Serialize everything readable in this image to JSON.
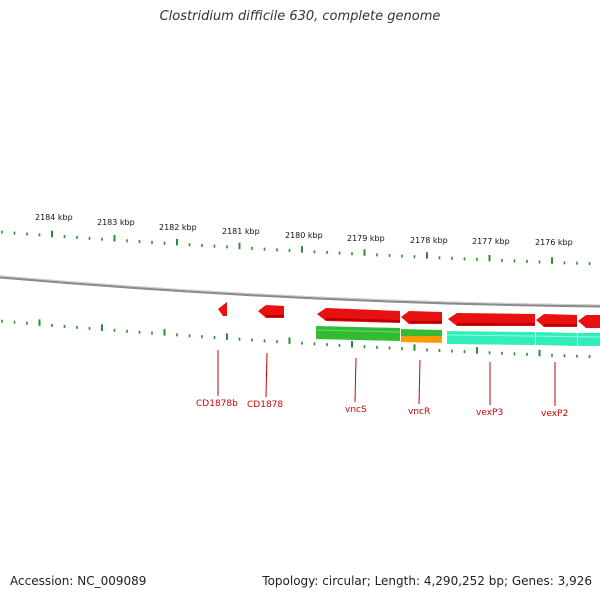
{
  "title": "Clostridium difficile 630, complete genome",
  "accession": {
    "label": "Accession:",
    "value": "NC_009089"
  },
  "summary": {
    "topology_label": "Topology:",
    "topology": "circular",
    "length_label": "Length:",
    "length": "4,290,252 bp",
    "genes_label": "Genes:",
    "genes": "3,926"
  },
  "scale_labels": [
    "2184 kbp",
    "2183 kbp",
    "2182 kbp",
    "2181 kbp",
    "2180 kbp",
    "2179 kbp",
    "2178 kbp",
    "2177 kbp",
    "2176 kbp"
  ],
  "gene_labels": [
    "CD1878b",
    "CD1878",
    "vncS",
    "vncR",
    "vexP3",
    "vexP2"
  ],
  "colors": {
    "backbone": "#8a8a8a",
    "tick": "#2e8b2e",
    "gene_red": "#e81010",
    "cds_green": "#33bb33",
    "cds_orange": "#ff9900",
    "cds_cyan": "#33eebb",
    "label_red": "#cc0000"
  }
}
